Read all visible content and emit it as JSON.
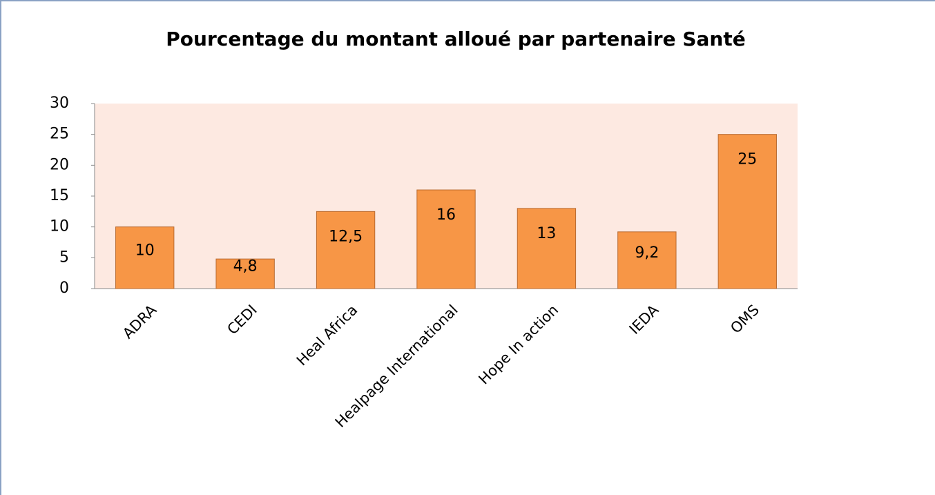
{
  "chart_data": {
    "type": "bar",
    "title": "Pourcentage du montant alloué par partenaire Santé",
    "categories": [
      "ADRA",
      "CEDI",
      "Heal Africa",
      "Healpage International",
      "Hope In action",
      "IEDA",
      "OMS"
    ],
    "values": [
      10,
      4.8,
      12.5,
      16,
      13,
      9.2,
      25
    ],
    "value_labels": [
      "10",
      "4,8",
      "12,5",
      "16",
      "13",
      "9,2",
      "25"
    ],
    "color": "#f79646",
    "ylim": [
      0,
      30
    ],
    "yticks": [
      0,
      5,
      10,
      15,
      20,
      25,
      30
    ],
    "grid": false
  }
}
